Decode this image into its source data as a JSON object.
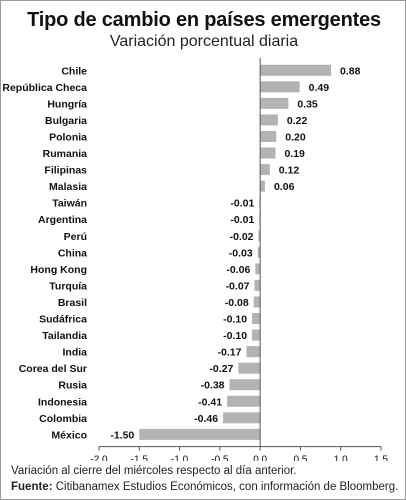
{
  "title": "Tipo de cambio en países emergentes",
  "subtitle": "Variación porcentual diaria",
  "note": "Variación al cierre del miércoles respecto al día anterior.",
  "source_label": "Fuente:",
  "source_text": "Citibanamex Estudios Económicos, con información de Bloomberg.",
  "colors": {
    "bar": "#b3b3b3",
    "axis": "#555555",
    "text": "#111111"
  },
  "chart_data": {
    "type": "bar",
    "orientation": "horizontal",
    "categories": [
      "Chile",
      "República Checa",
      "Hungría",
      "Bulgaria",
      "Polonia",
      "Rumania",
      "Filipinas",
      "Malasia",
      "Taiwán",
      "Argentina",
      "Perú",
      "China",
      "Hong Kong",
      "Turquía",
      "Brasil",
      "Sudáfrica",
      "Tailandia",
      "India",
      "Corea del Sur",
      "Rusia",
      "Indonesia",
      "Colombia",
      "México"
    ],
    "values": [
      0.88,
      0.49,
      0.35,
      0.22,
      0.2,
      0.19,
      0.12,
      0.06,
      -0.01,
      -0.01,
      -0.02,
      -0.03,
      -0.06,
      -0.07,
      -0.08,
      -0.1,
      -0.1,
      -0.17,
      -0.27,
      -0.38,
      -0.41,
      -0.46,
      -1.5
    ],
    "value_labels": [
      "0.88",
      "0.49",
      "0.35",
      "0.22",
      "0.20",
      "0.19",
      "0.12",
      "0.06",
      "-0.01",
      "-0.01",
      "-0.02",
      "-0.03",
      "-0.06",
      "-0.07",
      "-0.08",
      "-0.10",
      "-0.10",
      "-0.17",
      "-0.27",
      "-0.38",
      "-0.41",
      "-0.46",
      "-1.50"
    ],
    "xlim": [
      -2.0,
      1.5
    ],
    "xticks": [
      -2.0,
      -1.5,
      -1.0,
      -0.5,
      0.0,
      0.5,
      1.0,
      1.5
    ],
    "xtick_labels": [
      "-2.0",
      "-1.5",
      "-1.0",
      "-0.5",
      "0.0",
      "0.5",
      "1.0",
      "1.5"
    ],
    "grid": false
  }
}
